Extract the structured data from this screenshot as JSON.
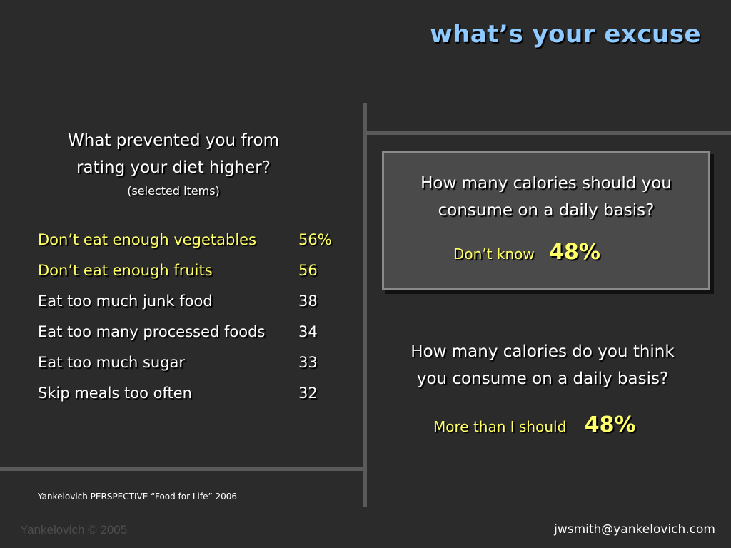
{
  "slide": {
    "title": "what’s your excuse",
    "left": {
      "question_line1": "What prevented you from",
      "question_line2": "rating your diet higher?",
      "subnote": "(selected items)",
      "items": [
        {
          "label": "Don’t eat enough vegetables",
          "value": "56%",
          "highlight": true
        },
        {
          "label": "Don’t eat enough fruits",
          "value": "56",
          "highlight": true
        },
        {
          "label": "Eat too much junk food",
          "value": "38",
          "highlight": false
        },
        {
          "label": "Eat too many processed foods",
          "value": "34",
          "highlight": false
        },
        {
          "label": "Eat too much sugar",
          "value": "33",
          "highlight": false
        },
        {
          "label": "Skip meals too often",
          "value": "32",
          "highlight": false
        }
      ]
    },
    "right": {
      "box_question_line1": "How many calories should you",
      "box_question_line2": "consume on a daily basis?",
      "box_answer_label": "Don’t know",
      "box_answer_pct": "48%",
      "question2_line1": "How many calories do you think",
      "question2_line2": "you consume on a daily basis?",
      "answer2_label": "More than I should",
      "answer2_pct": "48%"
    },
    "source": "Yankelovich PERSPECTIVE “Food for Life” 2006",
    "footer_left": "Yankelovich © 2005",
    "footer_right": "jwsmith@yankelovich.com"
  },
  "colors": {
    "background": "#2b2b2b",
    "title": "#8ec9ff",
    "highlight": "#ffff66",
    "divider": "#5a5a5a"
  }
}
